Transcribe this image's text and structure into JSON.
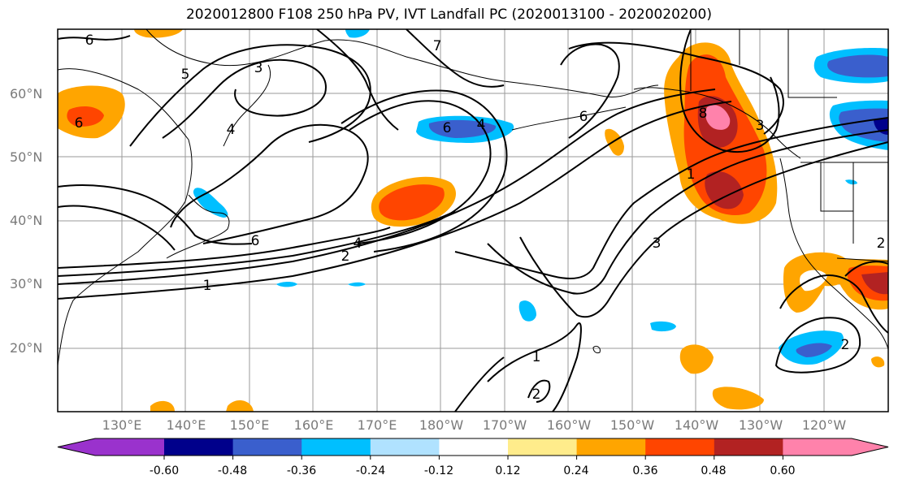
{
  "title": "2020012800 F108 250 hPa PV, IVT Landfall PC (2020013100 - 2020020200)",
  "lat_labels": [
    "60°N",
    "50°N",
    "40°N",
    "30°N",
    "20°N"
  ],
  "lon_labels": [
    "130°E",
    "140°E",
    "150°E",
    "160°E",
    "170°E",
    "180°W",
    "170°W",
    "160°W",
    "150°W",
    "140°W",
    "130°W",
    "120°W"
  ],
  "contour_labels": [
    "6",
    "5",
    "3",
    "4",
    "7",
    "6",
    "6",
    "4",
    "6",
    "2",
    "1",
    "3",
    "4",
    "6",
    "2",
    "1",
    "2",
    "1",
    "2",
    "3",
    "8"
  ],
  "colorbar": {
    "colors": [
      "#9a32cd",
      "#00008b",
      "#3a5fcd",
      "#00bfff",
      "#b0e2ff",
      "#ffffff",
      "#ffec8b",
      "#ffa500",
      "#ff4500",
      "#b22222",
      "#ff82ab"
    ],
    "ticks": [
      "-0.60",
      "-0.48",
      "-0.36",
      "-0.24",
      "-0.12",
      "0.12",
      "0.24",
      "0.36",
      "0.48",
      "0.60"
    ]
  }
}
